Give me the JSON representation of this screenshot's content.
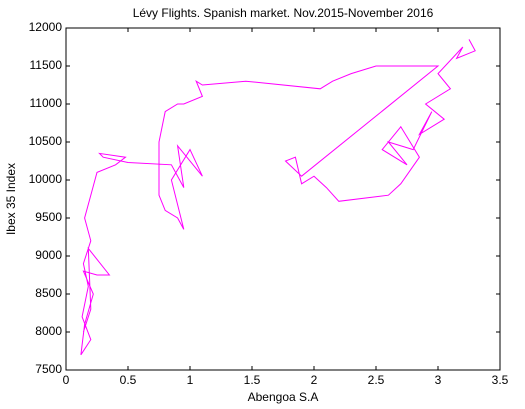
{
  "chart_data": {
    "type": "line",
    "title": "Lévy Flights. Spanish market. Nov.2015-November 2016",
    "x_label": "Abengoa S.A",
    "y_label": "Ibex 35 Index",
    "xlim": [
      0,
      3.5
    ],
    "ylim": [
      7500,
      12000
    ],
    "xticks": [
      0,
      0.5,
      1,
      1.5,
      2,
      2.5,
      3,
      3.5
    ],
    "yticks": [
      7500,
      8000,
      8500,
      9000,
      9500,
      10000,
      10500,
      11000,
      11500,
      12000
    ],
    "grid": false,
    "series": [
      {
        "color": "#ff00ff",
        "x": [
          3.25,
          3.3,
          3.15,
          3.2,
          3.0,
          3.1,
          2.9,
          3.05,
          2.85,
          2.95,
          2.8,
          2.6,
          2.75,
          2.55,
          2.7,
          2.85,
          2.7,
          2.6,
          2.2,
          2.1,
          2.0,
          1.9,
          1.85,
          1.77,
          1.9,
          3.0,
          2.5,
          2.3,
          2.15,
          2.05,
          1.45,
          1.1,
          1.05,
          1.1,
          0.95,
          0.9,
          0.8,
          0.75,
          0.75,
          0.8,
          0.9,
          0.95,
          0.85,
          1.0,
          1.1,
          0.9,
          0.95,
          0.85,
          0.5,
          0.3,
          0.27,
          0.48,
          0.4,
          0.25,
          0.2,
          0.15,
          0.2,
          0.14,
          0.18,
          0.13,
          0.2,
          0.12,
          0.15,
          0.22,
          0.14,
          0.25,
          0.35,
          0.18,
          0.2,
          0.14
        ],
        "values": [
          11850,
          11700,
          11600,
          11750,
          11400,
          11200,
          11000,
          10800,
          10600,
          10900,
          10400,
          10500,
          10200,
          10400,
          10700,
          10300,
          9950,
          9800,
          9720,
          9900,
          10050,
          9950,
          10300,
          10250,
          10050,
          11500,
          11500,
          11400,
          11300,
          11200,
          11300,
          11250,
          11300,
          11100,
          11000,
          11000,
          10900,
          10500,
          9800,
          9600,
          9500,
          9350,
          10000,
          10400,
          10050,
          10450,
          9900,
          10200,
          10230,
          10300,
          10350,
          10300,
          10200,
          10100,
          9800,
          9500,
          9200,
          8900,
          8600,
          8200,
          7900,
          7700,
          8100,
          8500,
          8800,
          8750,
          8750,
          9100,
          8300,
          8000
        ]
      }
    ]
  }
}
